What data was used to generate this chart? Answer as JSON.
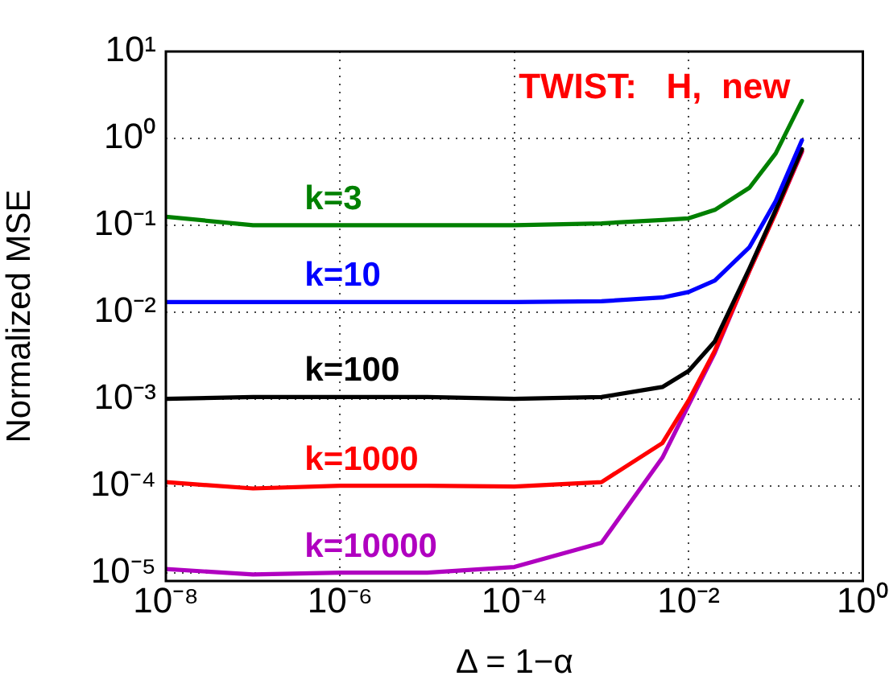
{
  "chart_data": {
    "type": "line",
    "xlabel": "Δ = 1−α",
    "ylabel": "Normalized MSE",
    "annotations": [
      "TWIST:   H,  new"
    ],
    "log": "xy",
    "grid": true,
    "legend": false,
    "marker": "none",
    "line_style": "solid",
    "xlim": [
      1e-08,
      1
    ],
    "xticks": [
      {
        "value": 1e-08,
        "label": "10⁻⁸"
      },
      {
        "value": 1e-06,
        "label": "10⁻⁶"
      },
      {
        "value": 0.0001,
        "label": "10⁻⁴"
      },
      {
        "value": 0.01,
        "label": "10⁻²"
      },
      {
        "value": 1,
        "label": "10⁰"
      }
    ],
    "ylim": [
      8e-06,
      10
    ],
    "yticks": [
      {
        "value": 1e-05,
        "label": "10⁻⁵"
      },
      {
        "value": 0.0001,
        "label": "10⁻⁴"
      },
      {
        "value": 0.001,
        "label": "10⁻³"
      },
      {
        "value": 0.01,
        "label": "10⁻²"
      },
      {
        "value": 0.1,
        "label": "10⁻¹"
      },
      {
        "value": 1,
        "label": "10⁰"
      },
      {
        "value": 10,
        "label": "10¹"
      }
    ],
    "x": [
      1e-08,
      1e-07,
      1e-06,
      1e-05,
      0.0001,
      0.001,
      0.005,
      0.01,
      0.02,
      0.05,
      0.1,
      0.2
    ],
    "series": [
      {
        "name": "k=3",
        "color": "#008000",
        "values": [
          0.125,
          0.1,
          0.1,
          0.1,
          0.1,
          0.105,
          0.115,
          0.12,
          0.15,
          0.27,
          0.67,
          2.7
        ]
      },
      {
        "name": "k=10",
        "color": "#0000ff",
        "values": [
          0.013,
          0.013,
          0.013,
          0.013,
          0.013,
          0.0133,
          0.0147,
          0.017,
          0.023,
          0.056,
          0.19,
          0.95
        ]
      },
      {
        "name": "k=100",
        "color": "#000000",
        "values": [
          0.001,
          0.00105,
          0.00105,
          0.00105,
          0.001,
          0.00105,
          0.00137,
          0.0021,
          0.0046,
          0.032,
          0.15,
          0.75
        ]
      },
      {
        "name": "k=1000",
        "color": "#ff0000",
        "values": [
          0.00011,
          9.3e-05,
          0.0001,
          0.0001,
          9.8e-05,
          0.00011,
          0.00031,
          0.00096,
          0.0036,
          0.03,
          0.14,
          0.72
        ]
      },
      {
        "name": "k=10000",
        "color": "#b000c0",
        "values": [
          1.1e-05,
          9.5e-06,
          1e-05,
          1e-05,
          1.16e-05,
          2.2e-05,
          0.00021,
          0.00085,
          0.0034,
          0.03,
          0.14,
          0.7
        ]
      }
    ]
  }
}
